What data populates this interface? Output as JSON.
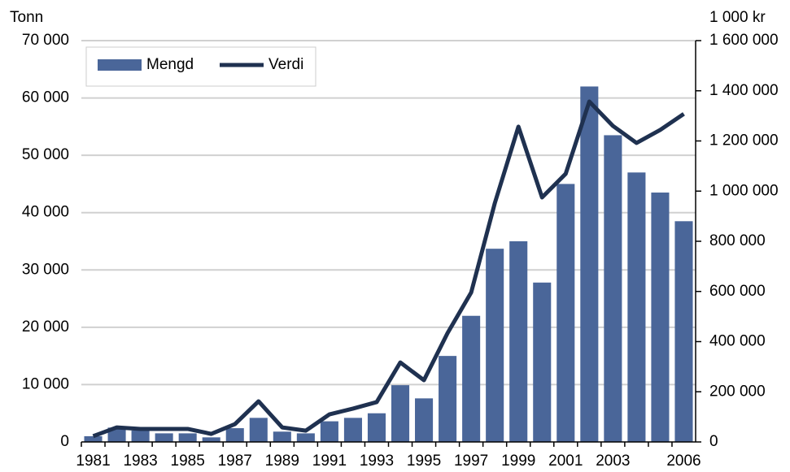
{
  "chart_data": {
    "type": "bar-line",
    "y_label": "Tonn",
    "y2_label": "1 000 kr",
    "categories": [
      1981,
      null,
      1983,
      null,
      1985,
      null,
      1987,
      null,
      1989,
      null,
      1991,
      null,
      1993,
      null,
      1995,
      null,
      1997,
      null,
      1999,
      null,
      2001,
      null,
      2003,
      null,
      null,
      2006
    ],
    "series": [
      {
        "name": "Mengd",
        "type": "bar",
        "color": "#4a6699",
        "values": [
          1000,
          2500,
          2000,
          1500,
          1500,
          800,
          2400,
          4200,
          1800,
          1500,
          3600,
          4200,
          5000,
          9900,
          7600,
          15000,
          22000,
          33700,
          35000,
          27800,
          45000,
          62000,
          53500,
          47000,
          43500,
          38500
        ]
      },
      {
        "name": "Verdi",
        "type": "line",
        "axis": "y2",
        "color": "#1f3150",
        "values": [
          23000,
          58000,
          52000,
          52000,
          52000,
          32000,
          71000,
          162000,
          58000,
          45000,
          110000,
          133000,
          159000,
          317000,
          246000,
          434000,
          596000,
          952000,
          1257000,
          975000,
          1069000,
          1357000,
          1260000,
          1192000,
          1244000,
          1308000
        ]
      }
    ],
    "ylim": [
      0,
      70000
    ],
    "yticks": [
      0,
      {
        "value": 10000,
        "label": "10 000"
      },
      {
        "value": 20000,
        "label": "20 000"
      },
      {
        "value": 30000,
        "label": "30 000"
      },
      {
        "value": 40000,
        "label": "40 000"
      },
      {
        "value": 50000,
        "label": "50 000"
      },
      {
        "value": 60000,
        "label": "60 000"
      },
      {
        "value": 70000,
        "label": "70 000"
      }
    ],
    "y2lim": [
      0,
      1600000
    ],
    "y2ticks": [
      0,
      {
        "value": 200000,
        "label": "200 000"
      },
      {
        "value": 400000,
        "label": "400 000"
      },
      {
        "value": 600000,
        "label": "600 000"
      },
      {
        "value": 800000,
        "label": "800 000"
      },
      {
        "value": 1000000,
        "label": "1 000 000"
      },
      {
        "value": 1200000,
        "label": "1 200 000"
      },
      {
        "value": 1400000,
        "label": "1 400 000"
      },
      {
        "value": 1600000,
        "label": "1 600 000"
      }
    ],
    "grid": true,
    "legend": "top-left"
  }
}
